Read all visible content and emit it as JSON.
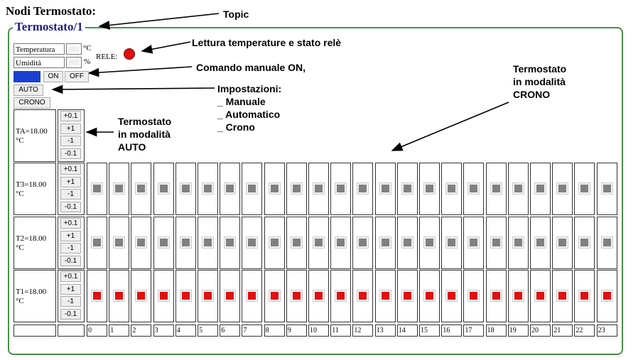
{
  "page": {
    "title": "Nodi Termostato:",
    "legend": "Termostato/1"
  },
  "annotations": {
    "topic": "Topic",
    "lettura": "Lettura temperature e stato relè",
    "comando": "Comando manuale ON,",
    "impostazioni": [
      "Impostazioni:",
      "_ Manuale",
      "_ Automatico",
      "_ Crono"
    ],
    "auto": [
      "Termostato",
      "in modalità",
      "AUTO"
    ],
    "crono": [
      "Termostato",
      "in modalità",
      "CRONO"
    ]
  },
  "sensors": {
    "temperature_label": "Temperatura",
    "temperature_unit": "°C",
    "humidity_label": "Umidità",
    "humidity_unit": "%",
    "value_placeholder": "░░░",
    "rele_label": "RELE:"
  },
  "manual": {
    "on_label": "ON",
    "off_label": "OFF"
  },
  "modes": {
    "auto_label": "AUTO",
    "crono_label": "CRONO"
  },
  "steps": [
    "+0.1",
    "+1",
    "-1",
    "-0.1"
  ],
  "rows": [
    {
      "label": "TA=18.00 °C",
      "line1": "TA=18.00",
      "line2": "°C",
      "has_grid": false
    },
    {
      "label": "T3=18.00 °C",
      "line1": "T3=18.00",
      "line2": "°C",
      "has_grid": true,
      "active": false
    },
    {
      "label": "T2=18.00 °C",
      "line1": "T2=18.00",
      "line2": "°C",
      "has_grid": true,
      "active": false
    },
    {
      "label": "T1=18.00 °C",
      "line1": "T1=18.00",
      "line2": "°C",
      "has_grid": true,
      "active": true
    }
  ],
  "hours": [
    "0",
    "1",
    "2",
    "3",
    "4",
    "5",
    "6",
    "7",
    "8",
    "9",
    "10",
    "11",
    "12",
    "13",
    "14",
    "15",
    "16",
    "17",
    "18",
    "19",
    "20",
    "21",
    "22",
    "23"
  ],
  "colors": {
    "mark_active": "#e01010",
    "mark_inactive": "#808080",
    "legend": "#1d1d8c",
    "frame": "#4a8f4a",
    "slider": "#1a3fd0",
    "rele_led": "#e01010"
  }
}
